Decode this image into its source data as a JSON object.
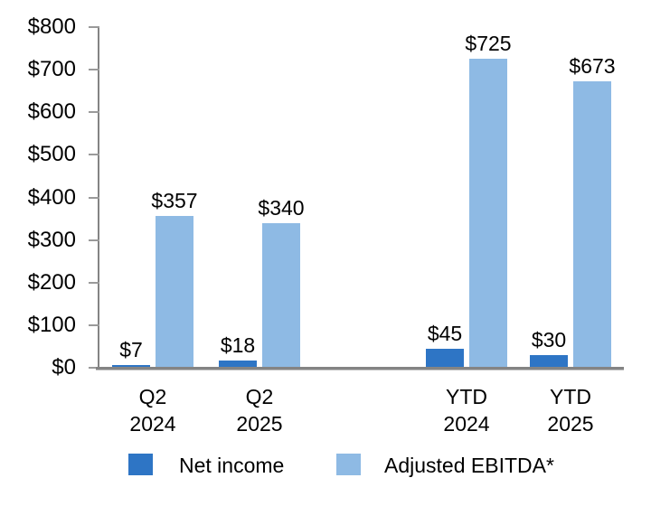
{
  "chart_data": {
    "type": "bar",
    "title": "",
    "categories": [
      {
        "line1": "Q2",
        "line2": "2024"
      },
      {
        "line1": "Q2",
        "line2": "2025"
      },
      {
        "line1": "YTD",
        "line2": "2024"
      },
      {
        "line1": "YTD",
        "line2": "2025"
      }
    ],
    "series": [
      {
        "name": "Net income",
        "color": "#2E75C5",
        "values": [
          7,
          18,
          45,
          30
        ],
        "data_labels": [
          "$7",
          "$18",
          "$45",
          "$30"
        ]
      },
      {
        "name": "Adjusted EBITDA*",
        "color": "#8EBAE4",
        "values": [
          357,
          340,
          725,
          673
        ],
        "data_labels": [
          "$357",
          "$340",
          "$725",
          "$673"
        ]
      }
    ],
    "y_axis": {
      "min": 0,
      "max": 800,
      "tick_step": 100,
      "tick_labels": [
        "$0",
        "$100",
        "$200",
        "$300",
        "$400",
        "$500",
        "$600",
        "$700",
        "$800"
      ]
    },
    "x_axis": {
      "gridlines": false
    },
    "legend": {
      "position": "bottom",
      "entries": [
        "Net income",
        "Adjusted EBITDA*"
      ]
    },
    "colors": {
      "axis_line": "#848484",
      "tick_mark": "#9a9a9a",
      "text": "#000000"
    }
  }
}
